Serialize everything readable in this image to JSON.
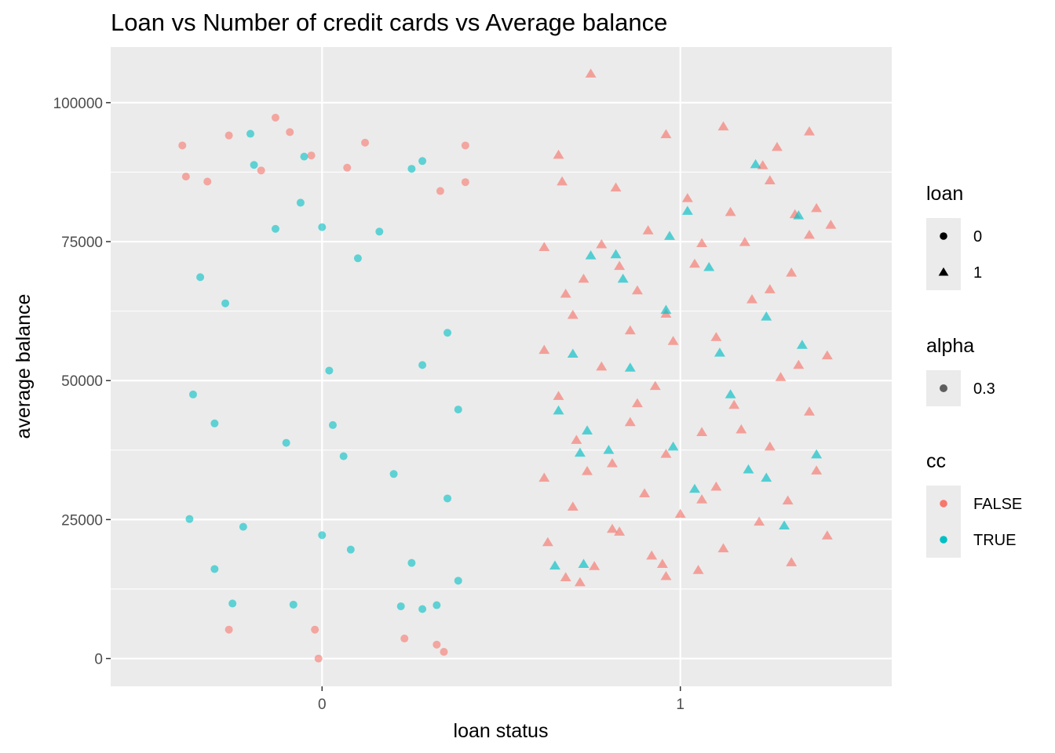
{
  "chart_data": {
    "type": "scatter",
    "title": "Loan vs Number of credit cards vs Average balance",
    "xlabel": "loan status",
    "ylabel": "average balance",
    "x_ticks": [
      "0",
      "1"
    ],
    "y_ticks": [
      {
        "value": 0,
        "label": "0"
      },
      {
        "value": 25000,
        "label": "25000"
      },
      {
        "value": 50000,
        "label": "50000"
      },
      {
        "value": 75000,
        "label": "75000"
      },
      {
        "value": 100000,
        "label": "100000"
      }
    ],
    "xlim": [
      -0.59,
      1.59
    ],
    "ylim": [
      -5000,
      110000
    ],
    "grid": true,
    "jitter": true,
    "point_alpha": 0.3,
    "colors": {
      "FALSE": "#F8766D",
      "TRUE": "#00BFC4"
    },
    "legend_position": "right",
    "legends": [
      {
        "title": "loan",
        "entries": [
          {
            "shape": "circle",
            "label": "0"
          },
          {
            "shape": "triangle",
            "label": "1"
          }
        ]
      },
      {
        "title": "alpha",
        "entries": [
          {
            "shape": "circle",
            "label": "0.3"
          }
        ]
      },
      {
        "title": "cc",
        "entries": [
          {
            "shape": "circle",
            "color": "#F8766D",
            "label": "FALSE"
          },
          {
            "shape": "circle",
            "color": "#00BFC4",
            "label": "TRUE"
          }
        ]
      }
    ],
    "series": [
      {
        "loan": 0,
        "cc": false,
        "shape": "circle",
        "points": [
          [
            -0.39,
            92300
          ],
          [
            -0.38,
            86700
          ],
          [
            -0.32,
            85800
          ],
          [
            -0.26,
            94100
          ],
          [
            -0.13,
            97300
          ],
          [
            -0.09,
            94700
          ],
          [
            -0.03,
            90500
          ],
          [
            0.12,
            92800
          ],
          [
            0.4,
            92300
          ],
          [
            -0.17,
            87800
          ],
          [
            0.07,
            88300
          ],
          [
            0.33,
            84100
          ],
          [
            0.4,
            85700
          ],
          [
            -0.02,
            5200
          ],
          [
            -0.26,
            5200
          ],
          [
            0.23,
            3600
          ],
          [
            0.32,
            2500
          ],
          [
            0.34,
            1200
          ],
          [
            -0.01,
            0
          ]
        ]
      },
      {
        "loan": 0,
        "cc": true,
        "shape": "circle",
        "points": [
          [
            -0.2,
            94400
          ],
          [
            -0.19,
            88800
          ],
          [
            -0.05,
            90300
          ],
          [
            0.25,
            88100
          ],
          [
            0.28,
            89500
          ],
          [
            -0.13,
            77300
          ],
          [
            0.0,
            77600
          ],
          [
            -0.06,
            82000
          ],
          [
            0.16,
            76800
          ],
          [
            -0.34,
            68600
          ],
          [
            -0.27,
            63900
          ],
          [
            0.1,
            72000
          ],
          [
            0.35,
            58600
          ],
          [
            -0.36,
            47500
          ],
          [
            0.02,
            51800
          ],
          [
            0.28,
            52800
          ],
          [
            0.38,
            44800
          ],
          [
            -0.3,
            42300
          ],
          [
            0.03,
            42000
          ],
          [
            -0.1,
            38800
          ],
          [
            0.06,
            36400
          ],
          [
            0.2,
            33200
          ],
          [
            0.35,
            28800
          ],
          [
            -0.22,
            23700
          ],
          [
            -0.37,
            25100
          ],
          [
            0.0,
            22200
          ],
          [
            0.08,
            19600
          ],
          [
            0.25,
            17200
          ],
          [
            -0.3,
            16100
          ],
          [
            0.38,
            14000
          ],
          [
            -0.25,
            9900
          ],
          [
            -0.08,
            9700
          ],
          [
            0.22,
            9400
          ],
          [
            0.28,
            8900
          ],
          [
            0.32,
            9600
          ]
        ]
      },
      {
        "loan": 1,
        "cc": false,
        "shape": "triangle",
        "points": [
          [
            0.75,
            105200
          ],
          [
            1.12,
            95700
          ],
          [
            1.36,
            94800
          ],
          [
            0.96,
            94300
          ],
          [
            1.27,
            92000
          ],
          [
            0.66,
            90600
          ],
          [
            1.23,
            88700
          ],
          [
            1.25,
            86000
          ],
          [
            0.67,
            85800
          ],
          [
            0.82,
            84700
          ],
          [
            1.02,
            82800
          ],
          [
            1.14,
            80300
          ],
          [
            1.32,
            79900
          ],
          [
            1.38,
            81000
          ],
          [
            0.91,
            77000
          ],
          [
            1.18,
            74900
          ],
          [
            0.78,
            74500
          ],
          [
            1.42,
            78000
          ],
          [
            0.62,
            74000
          ],
          [
            1.04,
            71000
          ],
          [
            0.73,
            68300
          ],
          [
            1.31,
            69400
          ],
          [
            0.88,
            66200
          ],
          [
            0.68,
            65600
          ],
          [
            1.2,
            64600
          ],
          [
            0.96,
            62000
          ],
          [
            0.86,
            59000
          ],
          [
            1.1,
            57800
          ],
          [
            0.62,
            55500
          ],
          [
            1.41,
            54500
          ],
          [
            0.78,
            52500
          ],
          [
            1.28,
            50600
          ],
          [
            0.93,
            49000
          ],
          [
            0.66,
            47200
          ],
          [
            1.15,
            45600
          ],
          [
            1.36,
            44400
          ],
          [
            0.86,
            42500
          ],
          [
            1.06,
            40700
          ],
          [
            0.71,
            39300
          ],
          [
            1.25,
            38100
          ],
          [
            0.96,
            36800
          ],
          [
            0.81,
            35100
          ],
          [
            1.38,
            33800
          ],
          [
            0.62,
            32500
          ],
          [
            1.1,
            30900
          ],
          [
            0.9,
            29700
          ],
          [
            1.3,
            28400
          ],
          [
            0.7,
            27300
          ],
          [
            1.0,
            26000
          ],
          [
            1.22,
            24600
          ],
          [
            0.81,
            23300
          ],
          [
            1.41,
            22100
          ],
          [
            0.63,
            20900
          ],
          [
            1.12,
            19800
          ],
          [
            0.92,
            18500
          ],
          [
            1.31,
            17300
          ],
          [
            0.76,
            16600
          ],
          [
            1.05,
            15900
          ],
          [
            0.68,
            14600
          ],
          [
            0.96,
            14800
          ],
          [
            0.72,
            13700
          ],
          [
            0.95,
            17000
          ],
          [
            0.83,
            22800
          ],
          [
            1.06,
            28600
          ],
          [
            0.74,
            33700
          ],
          [
            1.17,
            41200
          ],
          [
            0.88,
            45900
          ],
          [
            1.33,
            52800
          ],
          [
            0.98,
            57100
          ],
          [
            0.7,
            61800
          ],
          [
            1.25,
            66400
          ],
          [
            0.83,
            70600
          ],
          [
            1.06,
            74700
          ],
          [
            1.36,
            76200
          ]
        ]
      },
      {
        "loan": 1,
        "cc": true,
        "shape": "triangle",
        "points": [
          [
            1.21,
            88900
          ],
          [
            1.02,
            80500
          ],
          [
            1.33,
            79700
          ],
          [
            0.97,
            76000
          ],
          [
            0.75,
            72500
          ],
          [
            0.82,
            72700
          ],
          [
            0.84,
            68300
          ],
          [
            1.08,
            70400
          ],
          [
            0.96,
            62700
          ],
          [
            1.24,
            61500
          ],
          [
            1.34,
            56400
          ],
          [
            0.7,
            54800
          ],
          [
            1.11,
            55000
          ],
          [
            0.86,
            52300
          ],
          [
            1.14,
            47500
          ],
          [
            0.66,
            44600
          ],
          [
            0.74,
            41000
          ],
          [
            0.8,
            37500
          ],
          [
            0.72,
            37000
          ],
          [
            0.98,
            38100
          ],
          [
            1.19,
            34000
          ],
          [
            1.38,
            36700
          ],
          [
            1.24,
            32500
          ],
          [
            1.04,
            30500
          ],
          [
            1.29,
            23900
          ],
          [
            0.65,
            16700
          ],
          [
            0.73,
            17000
          ]
        ]
      }
    ]
  }
}
